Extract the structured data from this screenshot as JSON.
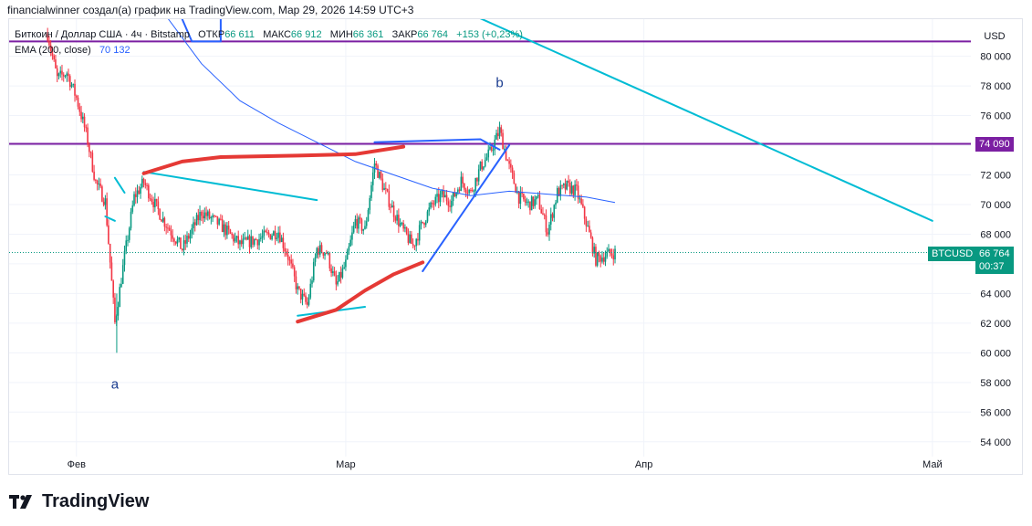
{
  "credit": "financialwinner создал(а) график на TradingView.com, Мар 29, 2026 14:59 UTC+3",
  "legend": {
    "symbol": "Биткоин / Доллар США · 4ч · Bitstamp",
    "open_label": "ОТКР",
    "open_value": "66 611",
    "high_label": "МАКС",
    "high_value": "66 912",
    "low_label": "МИН",
    "low_value": "66 361",
    "close_label": "ЗАКР",
    "close_value": "66 764",
    "change": "+153 (+0,23%)",
    "ema_label": "EMA (200, close)",
    "ema_value": "70 132"
  },
  "price_tags": {
    "level_value": "74 090",
    "symbol_badge": "BTCUSD",
    "last_price": "66 764",
    "countdown": "00:37"
  },
  "brand": "TradingView",
  "colors": {
    "up": "#089981",
    "down": "#f23645",
    "ema": "#2962ff",
    "level": "#7b1fa2",
    "trend": "#00bcd4",
    "marker": "#e53935",
    "drawing_blue": "#2962ff"
  },
  "chart_data": {
    "type": "candlestick",
    "currency": "USD",
    "ylim": [
      53000,
      82500
    ],
    "y_ticks": [
      54000,
      56000,
      58000,
      60000,
      62000,
      64000,
      66000,
      68000,
      70000,
      72000,
      74000,
      76000,
      78000,
      80000
    ],
    "y_tick_labels": [
      "54 000",
      "56 000",
      "58 000",
      "60 000",
      "62 000",
      "64 000",
      "66 000",
      "68 000",
      "70 000",
      "72 000",
      "74 000",
      "76 000",
      "78 000",
      "80 000"
    ],
    "x_range": [
      "2026-01-25",
      "2026-05-05"
    ],
    "x_ticks": [
      {
        "date": "2026-02-01",
        "label": "Фев"
      },
      {
        "date": "2026-03-01",
        "label": "Мар"
      },
      {
        "date": "2026-04-01",
        "label": "Апр"
      },
      {
        "date": "2026-05-01",
        "label": "Май"
      }
    ],
    "last_price": 66764,
    "horizontal_levels": [
      81000,
      74090
    ],
    "price_path": [
      [
        "2026-01-29",
        81500
      ],
      [
        "2026-01-30",
        78500
      ],
      [
        "2026-01-31",
        78900
      ],
      [
        "2026-02-01",
        77200
      ],
      [
        "2026-02-02",
        74800
      ],
      [
        "2026-02-03",
        71500
      ],
      [
        "2026-02-04",
        70200
      ],
      [
        "2026-02-05",
        62000
      ],
      [
        "2026-02-06",
        66500
      ],
      [
        "2026-02-07",
        70500
      ],
      [
        "2026-02-08",
        71500
      ],
      [
        "2026-02-09",
        70200
      ],
      [
        "2026-02-10",
        69000
      ],
      [
        "2026-02-12",
        67000
      ],
      [
        "2026-02-14",
        69500
      ],
      [
        "2026-02-16",
        68600
      ],
      [
        "2026-02-18",
        67300
      ],
      [
        "2026-02-20",
        67700
      ],
      [
        "2026-02-22",
        68200
      ],
      [
        "2026-02-23",
        66500
      ],
      [
        "2026-02-24",
        64200
      ],
      [
        "2026-02-25",
        63200
      ],
      [
        "2026-02-26",
        67000
      ],
      [
        "2026-02-27",
        66800
      ],
      [
        "2026-02-28",
        64500
      ],
      [
        "2026-03-01",
        66000
      ],
      [
        "2026-03-02",
        68900
      ],
      [
        "2026-03-03",
        68300
      ],
      [
        "2026-03-04",
        72800
      ],
      [
        "2026-03-05",
        71000
      ],
      [
        "2026-03-06",
        69500
      ],
      [
        "2026-03-07",
        68200
      ],
      [
        "2026-03-08",
        67200
      ],
      [
        "2026-03-09",
        68800
      ],
      [
        "2026-03-10",
        70000
      ],
      [
        "2026-03-11",
        70600
      ],
      [
        "2026-03-12",
        70200
      ],
      [
        "2026-03-13",
        71600
      ],
      [
        "2026-03-14",
        70800
      ],
      [
        "2026-03-15",
        72500
      ],
      [
        "2026-03-16",
        73500
      ],
      [
        "2026-03-17",
        75000
      ],
      [
        "2026-03-18",
        72500
      ],
      [
        "2026-03-19",
        70500
      ],
      [
        "2026-03-20",
        70000
      ],
      [
        "2026-03-21",
        70300
      ],
      [
        "2026-03-22",
        68200
      ],
      [
        "2026-03-23",
        70800
      ],
      [
        "2026-03-24",
        71200
      ],
      [
        "2026-03-25",
        70900
      ],
      [
        "2026-03-26",
        68800
      ],
      [
        "2026-03-27",
        66300
      ],
      [
        "2026-03-28",
        66600
      ],
      [
        "2026-03-29",
        66764
      ]
    ],
    "ema_path": [
      [
        "2026-02-10",
        83000
      ],
      [
        "2026-02-14",
        79500
      ],
      [
        "2026-02-18",
        77000
      ],
      [
        "2026-02-22",
        75500
      ],
      [
        "2026-02-26",
        74200
      ],
      [
        "2026-03-02",
        72900
      ],
      [
        "2026-03-06",
        72000
      ],
      [
        "2026-03-10",
        71100
      ],
      [
        "2026-03-14",
        70600
      ],
      [
        "2026-03-18",
        70900
      ],
      [
        "2026-03-22",
        70700
      ],
      [
        "2026-03-26",
        70500
      ],
      [
        "2026-03-29",
        70132
      ]
    ],
    "annotations": [
      {
        "label": "a",
        "date": "2026-02-05",
        "price": 57600
      },
      {
        "label": "b",
        "date": "2026-03-17",
        "price": 77900
      }
    ],
    "drawings": [
      {
        "type": "trend-cyan",
        "points": [
          [
            "2026-03-10",
            84000
          ],
          [
            "2026-05-01",
            68900
          ]
        ]
      },
      {
        "type": "trend-cyan",
        "points": [
          [
            "2026-02-08",
            72200
          ],
          [
            "2026-02-26",
            70300
          ]
        ]
      },
      {
        "type": "trend-cyan",
        "points": [
          [
            "2026-02-24",
            62500
          ],
          [
            "2026-03-03",
            63100
          ]
        ]
      },
      {
        "type": "trend-cyan",
        "points": [
          [
            "2026-02-05",
            71800
          ],
          [
            "2026-02-06",
            70800
          ]
        ]
      },
      {
        "type": "trend-cyan",
        "points": [
          [
            "2026-02-04",
            69200
          ],
          [
            "2026-02-05",
            68900
          ]
        ]
      },
      {
        "type": "marker-red",
        "points": [
          [
            "2026-02-08",
            72100
          ],
          [
            "2026-02-12",
            72900
          ],
          [
            "2026-02-16",
            73200
          ],
          [
            "2026-02-24",
            73300
          ],
          [
            "2026-03-02",
            73400
          ],
          [
            "2026-03-07",
            73900
          ]
        ]
      },
      {
        "type": "marker-red",
        "points": [
          [
            "2026-02-24",
            62100
          ],
          [
            "2026-02-28",
            62900
          ],
          [
            "2026-03-03",
            64200
          ],
          [
            "2026-03-06",
            65300
          ],
          [
            "2026-03-09",
            66100
          ]
        ]
      },
      {
        "type": "line-blue",
        "points": [
          [
            "2026-03-04",
            74200
          ],
          [
            "2026-03-15",
            74400
          ],
          [
            "2026-03-17",
            73700
          ]
        ]
      },
      {
        "type": "line-blue",
        "points": [
          [
            "2026-03-09",
            65500
          ],
          [
            "2026-03-18",
            74000
          ]
        ]
      },
      {
        "type": "line-blue",
        "points": [
          [
            "2026-02-12",
            82500
          ],
          [
            "2026-02-13",
            81000
          ],
          [
            "2026-02-16",
            81000
          ],
          [
            "2026-02-16",
            82500
          ]
        ]
      }
    ]
  }
}
